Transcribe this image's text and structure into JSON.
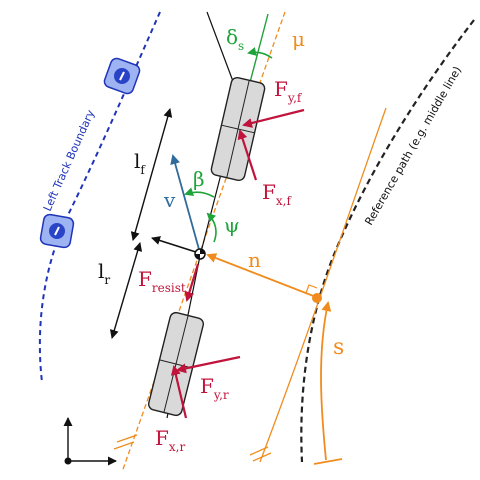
{
  "colors": {
    "force": "#c0143c",
    "angle": "#1fa33a",
    "track": "#1f34b8",
    "path": "#f08c1e",
    "velocity": "#2f6b9b",
    "body": "#111111",
    "tire_fill": "#d9d9d9"
  },
  "labels": {
    "left_track": "Left Track Boundary",
    "reference_path": "Reference path (e.g. middle line)",
    "delta": "δ",
    "delta_sub": "s",
    "mu": "μ",
    "fyf": "F",
    "fyf_sub": "y,f",
    "fxf": "F",
    "fxf_sub": "x,f",
    "lf": "l",
    "lf_sub": "f",
    "lr": "l",
    "lr_sub": "r",
    "beta": "β",
    "v": "v",
    "psi": "ψ",
    "n": "n",
    "fresist": "F",
    "fresist_sub": "resist",
    "fyr": "F",
    "fyr_sub": "y,r",
    "fxr": "F",
    "fxr_sub": "x,r",
    "s": "s"
  }
}
